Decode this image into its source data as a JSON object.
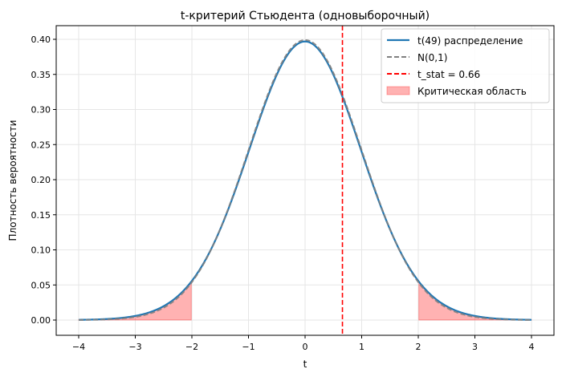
{
  "chart_data": {
    "type": "line",
    "title": "t-критерий Стьюдента (одновыборочный)",
    "xlabel": "t",
    "ylabel": "Плотность вероятности",
    "xlim": [
      -4.4,
      4.4
    ],
    "ylim": [
      -0.02,
      0.42
    ],
    "xticks": [
      -4,
      -3,
      -2,
      -1,
      0,
      1,
      2,
      3,
      4
    ],
    "xtick_labels": [
      "−4",
      "−3",
      "−2",
      "−1",
      "0",
      "1",
      "2",
      "3",
      "4"
    ],
    "yticks": [
      0.0,
      0.05,
      0.1,
      0.15,
      0.2,
      0.25,
      0.3,
      0.35,
      0.4
    ],
    "ytick_labels": [
      "0.00",
      "0.05",
      "0.10",
      "0.15",
      "0.20",
      "0.25",
      "0.30",
      "0.35",
      "0.40"
    ],
    "grid": true,
    "legend_position": "upper right",
    "series": [
      {
        "name": "t(49) распределение",
        "kind": "pdf_t",
        "df": 49,
        "color": "#1f77b4",
        "style": "solid",
        "x_range": [
          -4,
          4
        ]
      },
      {
        "name": "N(0,1)",
        "kind": "pdf_normal",
        "color": "#808080",
        "style": "dashed",
        "x_range": [
          -4,
          4
        ]
      },
      {
        "name": "t_stat = 0.66",
        "kind": "vline",
        "x": 0.66,
        "color": "#ff0000",
        "style": "dashed"
      },
      {
        "name": "Критическая область",
        "kind": "fill",
        "color": "#ff0000",
        "alpha": 0.3,
        "regions": [
          [
            -4,
            -2.01
          ],
          [
            2.01,
            4
          ]
        ]
      }
    ],
    "sample_points": {
      "x": [
        -4,
        -3,
        -2,
        -1,
        0,
        1,
        2,
        3,
        4
      ],
      "t49": [
        0.0005,
        0.0055,
        0.055,
        0.24,
        0.3969,
        0.24,
        0.055,
        0.0055,
        0.0005
      ],
      "normal": [
        0.0001,
        0.0044,
        0.054,
        0.242,
        0.3989,
        0.242,
        0.054,
        0.0044,
        0.0001
      ]
    }
  },
  "legend": {
    "items": [
      {
        "label": "t(49) распределение"
      },
      {
        "label": "N(0,1)"
      },
      {
        "label": "t_stat = 0.66"
      },
      {
        "label": "Критическая область"
      }
    ]
  }
}
